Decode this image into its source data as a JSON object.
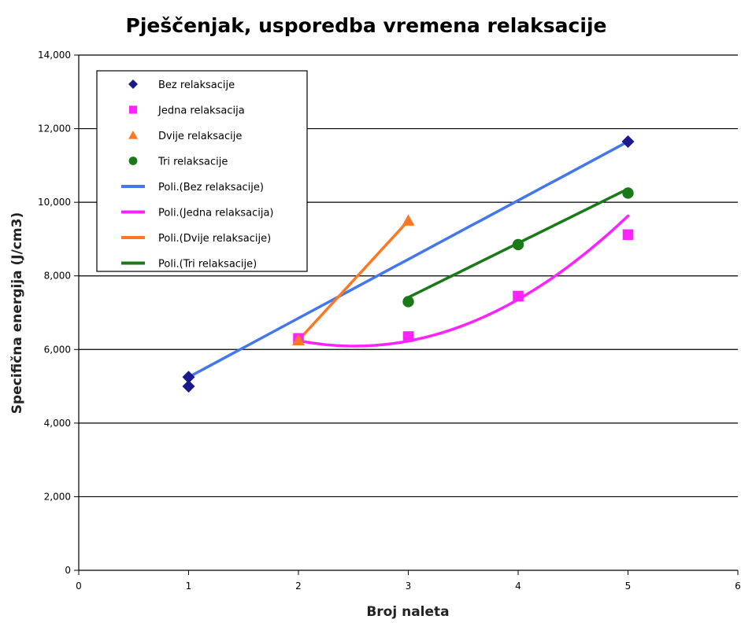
{
  "chart_data": {
    "type": "scatter",
    "title": "Pješčenjak, usporedba vremena relaksacije",
    "xlabel": "Broj naleta",
    "ylabel": "Specifična energija (J/cm3)",
    "xlim": [
      0,
      6
    ],
    "ylim": [
      0,
      14000
    ],
    "x_ticks": [
      "0",
      "1",
      "2",
      "3",
      "4",
      "5",
      "6"
    ],
    "y_ticks": [
      "0",
      "2,000",
      "4,000",
      "6,000",
      "8,000",
      "10,000",
      "12,000",
      "14,000"
    ],
    "grid": "horizontal",
    "legend_position": "top-left",
    "series": [
      {
        "name": "Bez relaksacije",
        "marker": "diamond",
        "color": "#1a1a8c",
        "points": [
          [
            1,
            5250
          ],
          [
            1,
            5000
          ],
          [
            5,
            11650
          ]
        ]
      },
      {
        "name": "Jedna relaksacija",
        "marker": "square",
        "color": "#ff22ff",
        "points": [
          [
            2,
            6300
          ],
          [
            3,
            6350
          ],
          [
            4,
            7450
          ],
          [
            5,
            9120
          ]
        ]
      },
      {
        "name": "Dvije relaksacije",
        "marker": "triangle",
        "color": "#ff7722",
        "points": [
          [
            2,
            6250
          ],
          [
            3,
            9500
          ]
        ]
      },
      {
        "name": "Tri relaksacije",
        "marker": "circle",
        "color": "#1a7a1a",
        "points": [
          [
            3,
            7300
          ],
          [
            4,
            8850
          ],
          [
            5,
            10250
          ]
        ]
      }
    ],
    "trendlines": [
      {
        "name": "Poli.(Bez relaksacije)",
        "color": "#4477ee",
        "range": [
          1,
          5
        ],
        "coef": [
          3650,
          1600,
          0
        ]
      },
      {
        "name": "Poli.(Jedna relaksacija)",
        "color": "#ff22ff",
        "range": [
          2,
          5
        ],
        "coef": [
          9680,
          -2860,
          570
        ]
      },
      {
        "name": "Poli.(Dvije relaksacije)",
        "color": "#ff7722",
        "range": [
          2,
          3
        ],
        "coef": [
          -250,
          3250,
          0
        ]
      },
      {
        "name": "Poli.(Tri relaksacije)",
        "color": "#1a7a1a",
        "range": [
          3,
          5
        ],
        "coef": [
          2990,
          1475,
          0
        ]
      }
    ]
  }
}
